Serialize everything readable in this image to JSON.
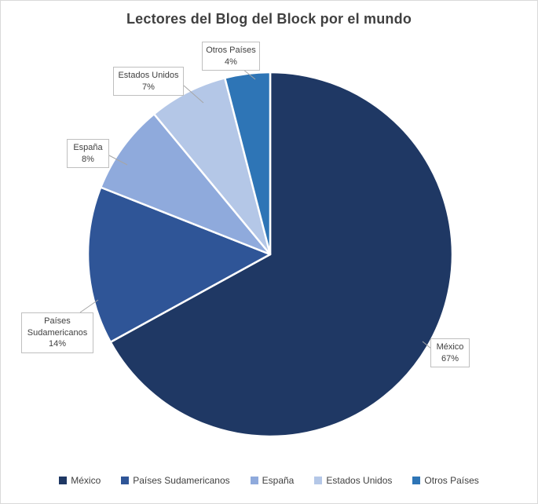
{
  "window": {
    "background": "#FFFFFF",
    "border_color": "#D9D9D9"
  },
  "chart_data": {
    "type": "pie",
    "title": "Lectores del Blog del Block por el mundo",
    "categories": [
      "México",
      "Países Sudamericanos",
      "España",
      "Estados Unidos",
      "Otros Países"
    ],
    "values": [
      67,
      14,
      8,
      7,
      4
    ],
    "unit": "%",
    "colors": [
      "#1F3864",
      "#2F5597",
      "#8FAADC",
      "#B4C7E7",
      "#2E75B6"
    ],
    "start_angle_deg": 0,
    "direction": "clockwise",
    "slice_border_color": "#FFFFFF",
    "legend_position": "bottom",
    "title_color": "#404040",
    "label_text_color": "#404040",
    "label_border_color": "#BFBFBF",
    "leader_line_color": "#A6A6A6",
    "slice_labels": [
      {
        "name": "México",
        "pct": "67%"
      },
      {
        "name": "Países Sudamericanos",
        "pct": "14%"
      },
      {
        "name": "España",
        "pct": "8%"
      },
      {
        "name": "Estados Unidos",
        "pct": "7%"
      },
      {
        "name": "Otros Países",
        "pct": "4%"
      }
    ]
  }
}
